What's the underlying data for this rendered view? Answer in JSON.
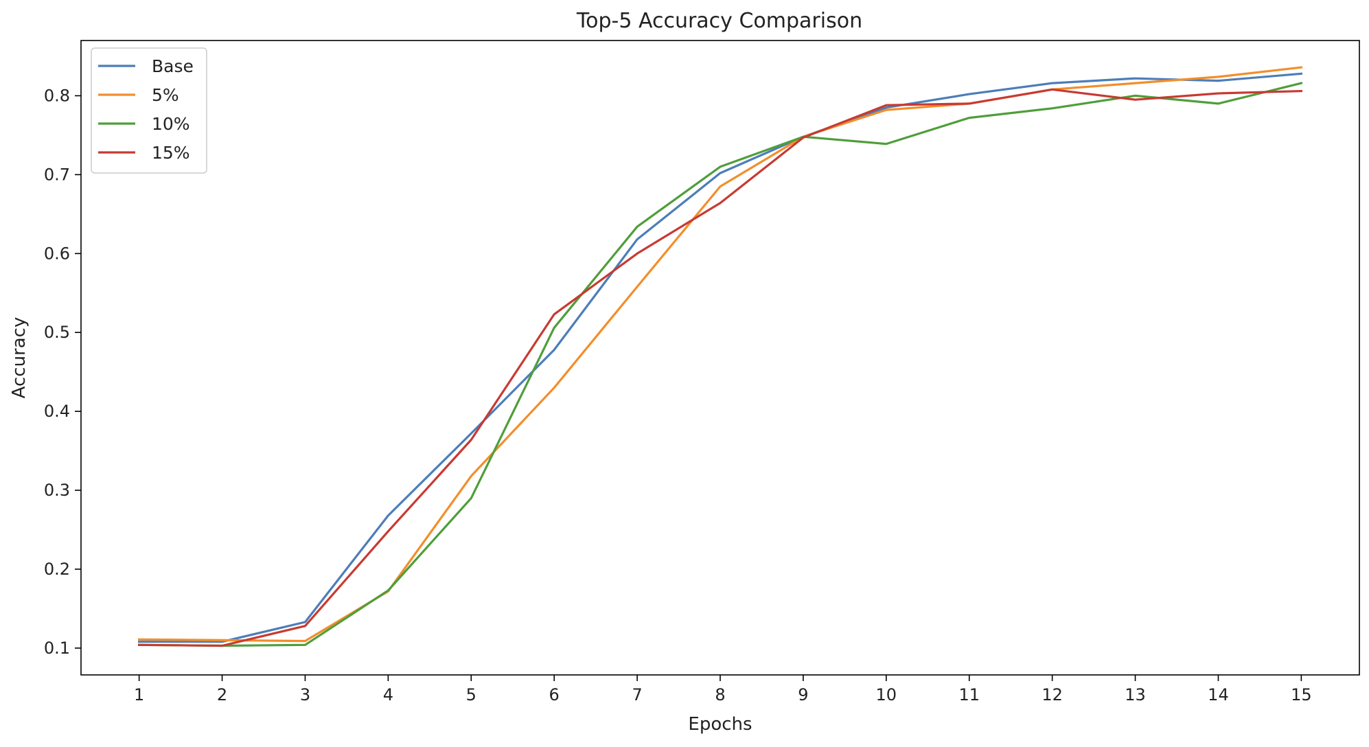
{
  "chart_data": {
    "type": "line",
    "title": "Top-5 Accuracy Comparison",
    "xlabel": "Epochs",
    "ylabel": "Accuracy",
    "x": [
      1,
      2,
      3,
      4,
      5,
      6,
      7,
      8,
      9,
      10,
      11,
      12,
      13,
      14,
      15
    ],
    "xlim": [
      0.3,
      15.7
    ],
    "ylim": [
      0.066,
      0.87
    ],
    "yticks": [
      0.1,
      0.2,
      0.3,
      0.4,
      0.5,
      0.6,
      0.7,
      0.8
    ],
    "grid": false,
    "legend_position": "top-left",
    "series": [
      {
        "name": "Base",
        "color": "#4c7db8",
        "values": [
          0.108,
          0.108,
          0.133,
          0.268,
          0.372,
          0.478,
          0.618,
          0.702,
          0.748,
          0.785,
          0.802,
          0.816,
          0.822,
          0.819,
          0.828
        ]
      },
      {
        "name": "5%",
        "color": "#f28e2b",
        "values": [
          0.111,
          0.11,
          0.109,
          0.172,
          0.318,
          0.43,
          0.558,
          0.685,
          0.748,
          0.782,
          0.79,
          0.808,
          0.816,
          0.824,
          0.836
        ]
      },
      {
        "name": "10%",
        "color": "#4f9e3a",
        "values": [
          0.104,
          0.103,
          0.104,
          0.173,
          0.29,
          0.506,
          0.634,
          0.71,
          0.748,
          0.739,
          0.772,
          0.784,
          0.8,
          0.79,
          0.816
        ]
      },
      {
        "name": "15%",
        "color": "#c73a32",
        "values": [
          0.104,
          0.103,
          0.128,
          0.248,
          0.364,
          0.523,
          0.6,
          0.664,
          0.747,
          0.788,
          0.79,
          0.808,
          0.795,
          0.803,
          0.806
        ]
      }
    ]
  }
}
